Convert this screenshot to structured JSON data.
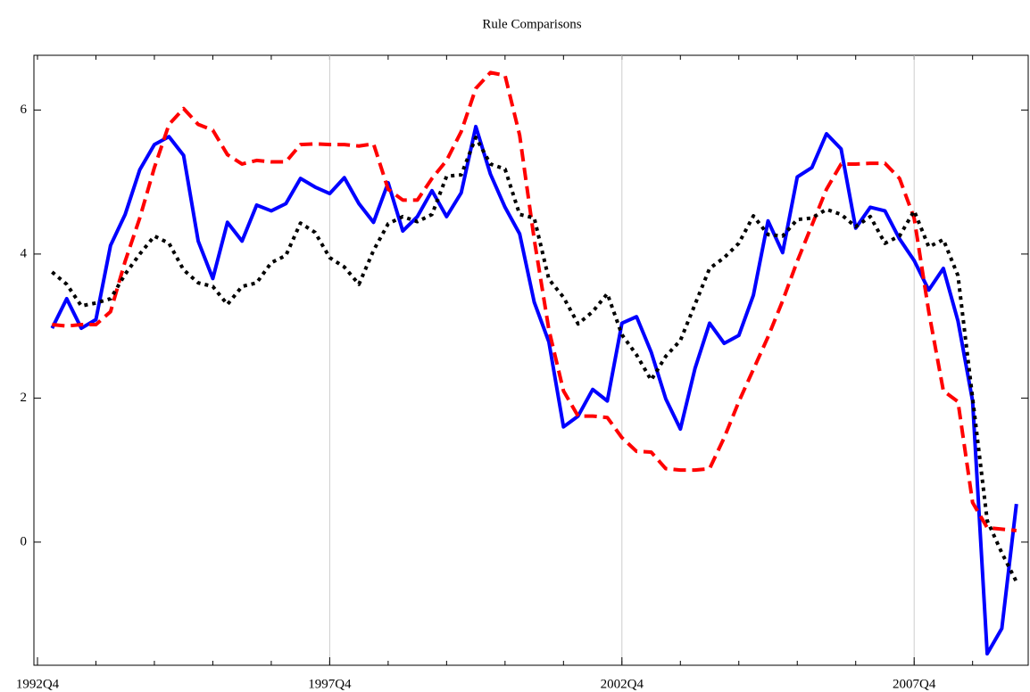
{
  "chart_data": {
    "type": "line",
    "title": "Rule Comparisons",
    "categories": [
      "1992Q4",
      null,
      null,
      null,
      null,
      null,
      null,
      null,
      null,
      null,
      null,
      null,
      null,
      null,
      null,
      null,
      null,
      null,
      null,
      null,
      "1997Q4",
      null,
      null,
      null,
      null,
      null,
      null,
      null,
      null,
      null,
      null,
      null,
      null,
      null,
      null,
      null,
      null,
      null,
      null,
      null,
      "2002Q4",
      null,
      null,
      null,
      null,
      null,
      null,
      null,
      null,
      null,
      null,
      null,
      null,
      null,
      null,
      null,
      null,
      null,
      null,
      null,
      "2007Q4",
      null,
      null,
      null,
      null,
      null,
      null,
      null
    ],
    "series": [
      {
        "color": "#0000ff",
        "dash": "solid",
        "values": [
          null,
          2.97,
          3.38,
          2.97,
          3.09,
          4.12,
          4.55,
          5.17,
          5.52,
          5.63,
          5.37,
          4.18,
          3.66,
          4.44,
          4.18,
          4.68,
          4.6,
          4.7,
          5.05,
          4.93,
          4.84,
          5.06,
          4.7,
          4.44,
          4.99,
          4.32,
          4.52,
          4.88,
          4.52,
          4.85,
          5.77,
          5.11,
          4.65,
          4.28,
          3.33,
          2.78,
          1.6,
          1.75,
          2.12,
          1.96,
          3.04,
          3.13,
          2.64,
          1.99,
          1.57,
          2.41,
          3.04,
          2.76,
          2.87,
          3.43,
          4.46,
          4.02,
          5.07,
          5.2,
          5.67,
          5.46,
          4.36,
          4.65,
          4.6,
          4.21,
          3.91,
          3.5,
          3.8,
          3.07,
          1.96,
          -1.55,
          -1.2,
          0.53
        ]
      },
      {
        "color": "#ff0000",
        "dash": "dashed",
        "values": [
          null,
          3.02,
          3.0,
          3.02,
          3.02,
          3.2,
          3.9,
          4.5,
          5.2,
          5.8,
          6.02,
          5.8,
          5.72,
          5.38,
          5.25,
          5.3,
          5.28,
          5.28,
          5.52,
          5.53,
          5.52,
          5.52,
          5.5,
          5.53,
          4.9,
          4.75,
          4.75,
          5.05,
          5.3,
          5.7,
          6.3,
          6.52,
          6.48,
          5.65,
          4.2,
          2.95,
          2.1,
          1.75,
          1.75,
          1.73,
          1.45,
          1.26,
          1.25,
          1.02,
          1.0,
          1.0,
          1.02,
          1.45,
          1.95,
          2.4,
          2.85,
          3.35,
          3.9,
          4.4,
          4.9,
          5.25,
          5.25,
          5.26,
          5.26,
          5.05,
          4.5,
          3.2,
          2.1,
          1.95,
          0.55,
          0.2,
          0.18,
          0.16
        ]
      },
      {
        "color": "#000000",
        "dash": "dotted",
        "values": [
          null,
          3.75,
          3.58,
          3.28,
          3.32,
          3.38,
          3.72,
          4.0,
          4.25,
          4.15,
          3.78,
          3.6,
          3.55,
          3.3,
          3.55,
          3.6,
          3.88,
          3.98,
          4.43,
          4.3,
          3.95,
          3.82,
          3.58,
          4.05,
          4.42,
          4.52,
          4.45,
          4.55,
          5.08,
          5.1,
          5.62,
          5.25,
          5.18,
          4.55,
          4.5,
          3.65,
          3.4,
          3.03,
          3.2,
          3.45,
          2.88,
          2.6,
          2.25,
          2.58,
          2.8,
          3.3,
          3.8,
          3.95,
          4.15,
          4.53,
          4.27,
          4.25,
          4.48,
          4.5,
          4.62,
          4.55,
          4.38,
          4.52,
          4.15,
          4.25,
          4.6,
          4.1,
          4.2,
          3.7,
          2.0,
          0.3,
          -0.15,
          -0.55
        ]
      }
    ],
    "ylim": [
      -1.71,
      6.76
    ],
    "yticks": [
      0,
      2,
      4,
      6
    ],
    "grid": "x"
  }
}
